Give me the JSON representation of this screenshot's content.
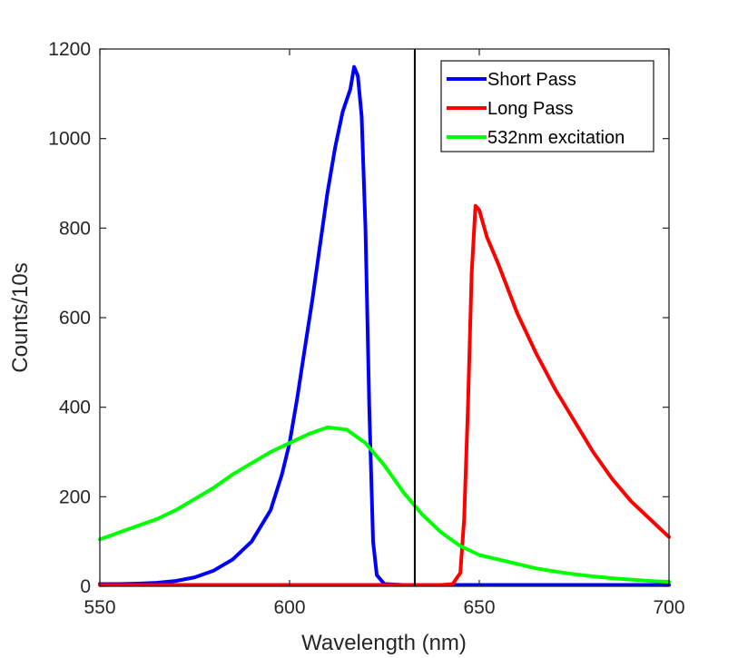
{
  "chart_data": {
    "type": "line",
    "title": "",
    "xlabel": "Wavelength (nm)",
    "ylabel": "Counts/10s",
    "xlim": [
      550,
      700
    ],
    "ylim": [
      0,
      1200
    ],
    "xticks": [
      550,
      600,
      650,
      700
    ],
    "yticks": [
      0,
      200,
      400,
      600,
      800,
      1000,
      1200
    ],
    "grid": false,
    "legend_position": "top-right",
    "vertical_line": {
      "x": 633,
      "color": "#000000"
    },
    "series": [
      {
        "name": "Short Pass",
        "color": "#0000ff",
        "x": [
          550,
          555,
          560,
          565,
          570,
          575,
          580,
          585,
          590,
          595,
          598,
          600,
          602,
          604,
          606,
          608,
          610,
          612,
          614,
          616,
          617,
          618,
          619,
          620,
          621,
          622,
          623,
          625,
          630,
          640,
          650,
          660,
          670,
          680,
          690,
          700
        ],
        "y": [
          5,
          5,
          6,
          8,
          12,
          20,
          35,
          60,
          100,
          170,
          250,
          320,
          420,
          530,
          640,
          760,
          880,
          980,
          1060,
          1110,
          1160,
          1140,
          1050,
          800,
          400,
          100,
          25,
          5,
          3,
          3,
          3,
          3,
          3,
          3,
          3,
          3
        ]
      },
      {
        "name": "Long Pass",
        "color": "#ff0000",
        "x": [
          550,
          600,
          620,
          635,
          640,
          643,
          645,
          646,
          647,
          648,
          649,
          650,
          652,
          655,
          660,
          665,
          670,
          675,
          680,
          685,
          690,
          695,
          700
        ],
        "y": [
          3,
          3,
          3,
          3,
          3,
          5,
          30,
          150,
          400,
          700,
          850,
          840,
          780,
          720,
          610,
          520,
          440,
          370,
          300,
          240,
          190,
          150,
          110
        ]
      },
      {
        "name": "532nm excitation",
        "color": "#00ff00",
        "x": [
          550,
          555,
          560,
          565,
          570,
          575,
          580,
          585,
          590,
          595,
          600,
          605,
          610,
          615,
          620,
          625,
          630,
          635,
          640,
          645,
          650,
          655,
          660,
          665,
          670,
          675,
          680,
          685,
          690,
          695,
          700
        ],
        "y": [
          105,
          120,
          135,
          150,
          170,
          195,
          220,
          250,
          275,
          300,
          320,
          340,
          355,
          350,
          320,
          270,
          210,
          160,
          120,
          90,
          70,
          60,
          50,
          40,
          33,
          27,
          22,
          18,
          15,
          12,
          10
        ]
      }
    ]
  }
}
